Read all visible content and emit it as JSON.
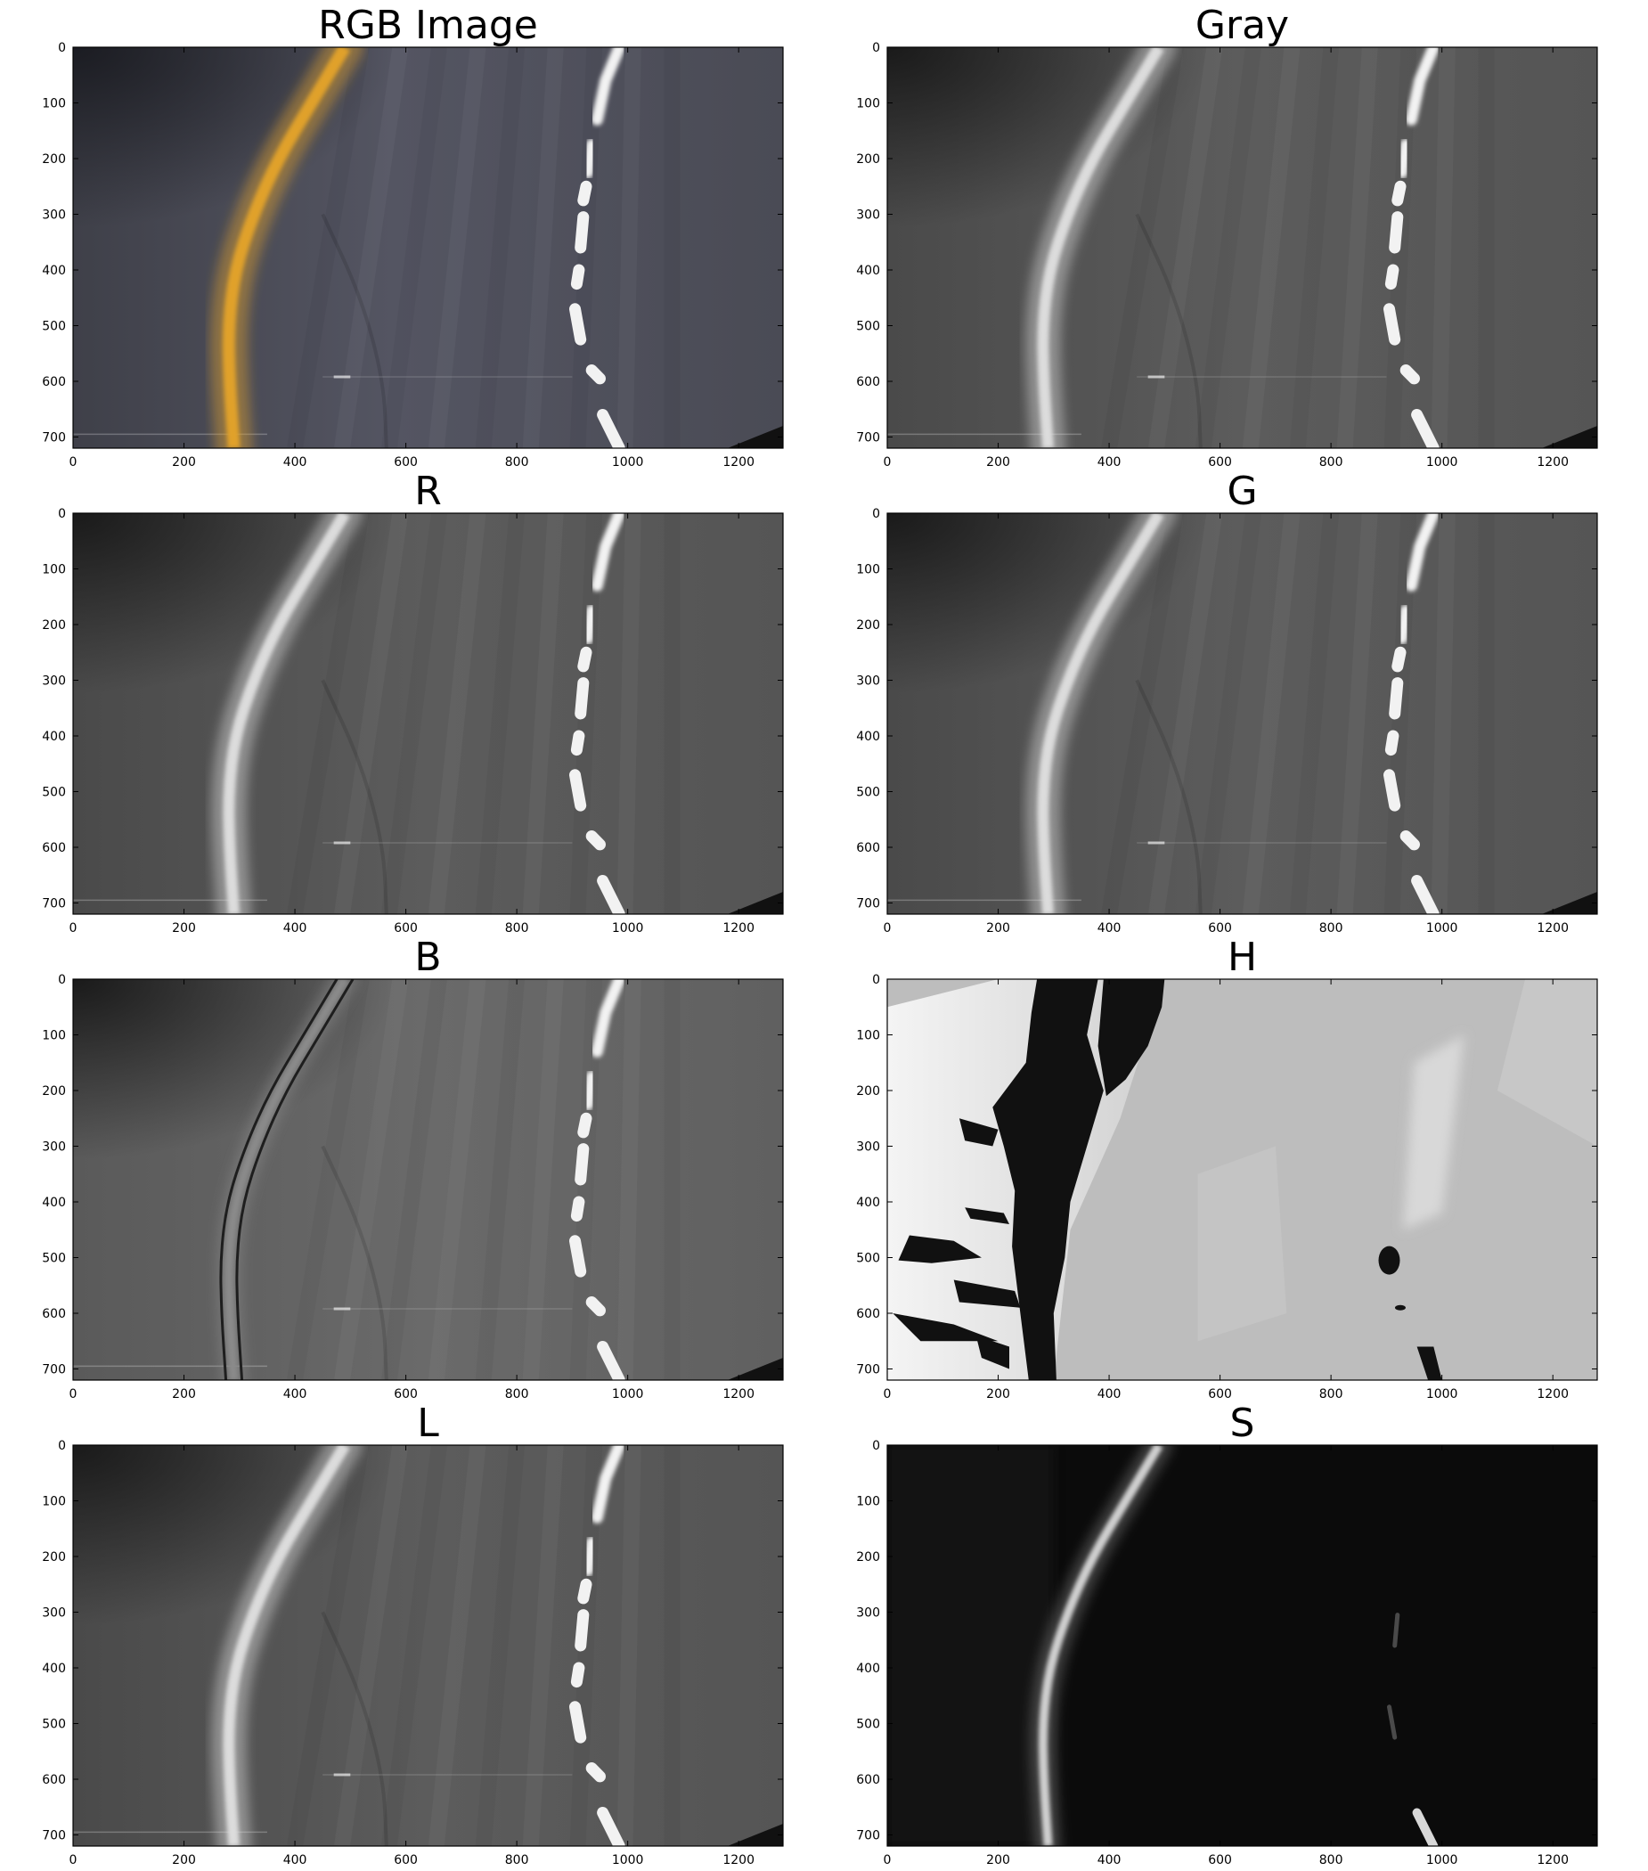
{
  "figure": {
    "axes": {
      "x_ticks": [
        0,
        200,
        400,
        600,
        800,
        1000,
        1200
      ],
      "y_ticks": [
        0,
        100,
        200,
        300,
        400,
        500,
        600,
        700
      ],
      "xlim": [
        0,
        1280
      ],
      "ylim": [
        720,
        0
      ]
    },
    "panels": [
      {
        "key": "rgb",
        "title": "RGB Image",
        "mode": "rgb"
      },
      {
        "key": "gray",
        "title": "Gray",
        "mode": "gray"
      },
      {
        "key": "r",
        "title": "R",
        "mode": "gray"
      },
      {
        "key": "g",
        "title": "G",
        "mode": "gray"
      },
      {
        "key": "b",
        "title": "B",
        "mode": "blue"
      },
      {
        "key": "h",
        "title": "H",
        "mode": "hue"
      },
      {
        "key": "l",
        "title": "L",
        "mode": "gray"
      },
      {
        "key": "s",
        "title": "S",
        "mode": "sat"
      }
    ],
    "colors": {
      "road_rgb": "#4e4f5b",
      "yellow_line": "#e0a12a",
      "white_line": "#f2f2f2",
      "road_gray": "#555555",
      "h_dark": "#111111",
      "h_light": "#bdbdbd",
      "s_dark": "#0b0b0b"
    }
  }
}
